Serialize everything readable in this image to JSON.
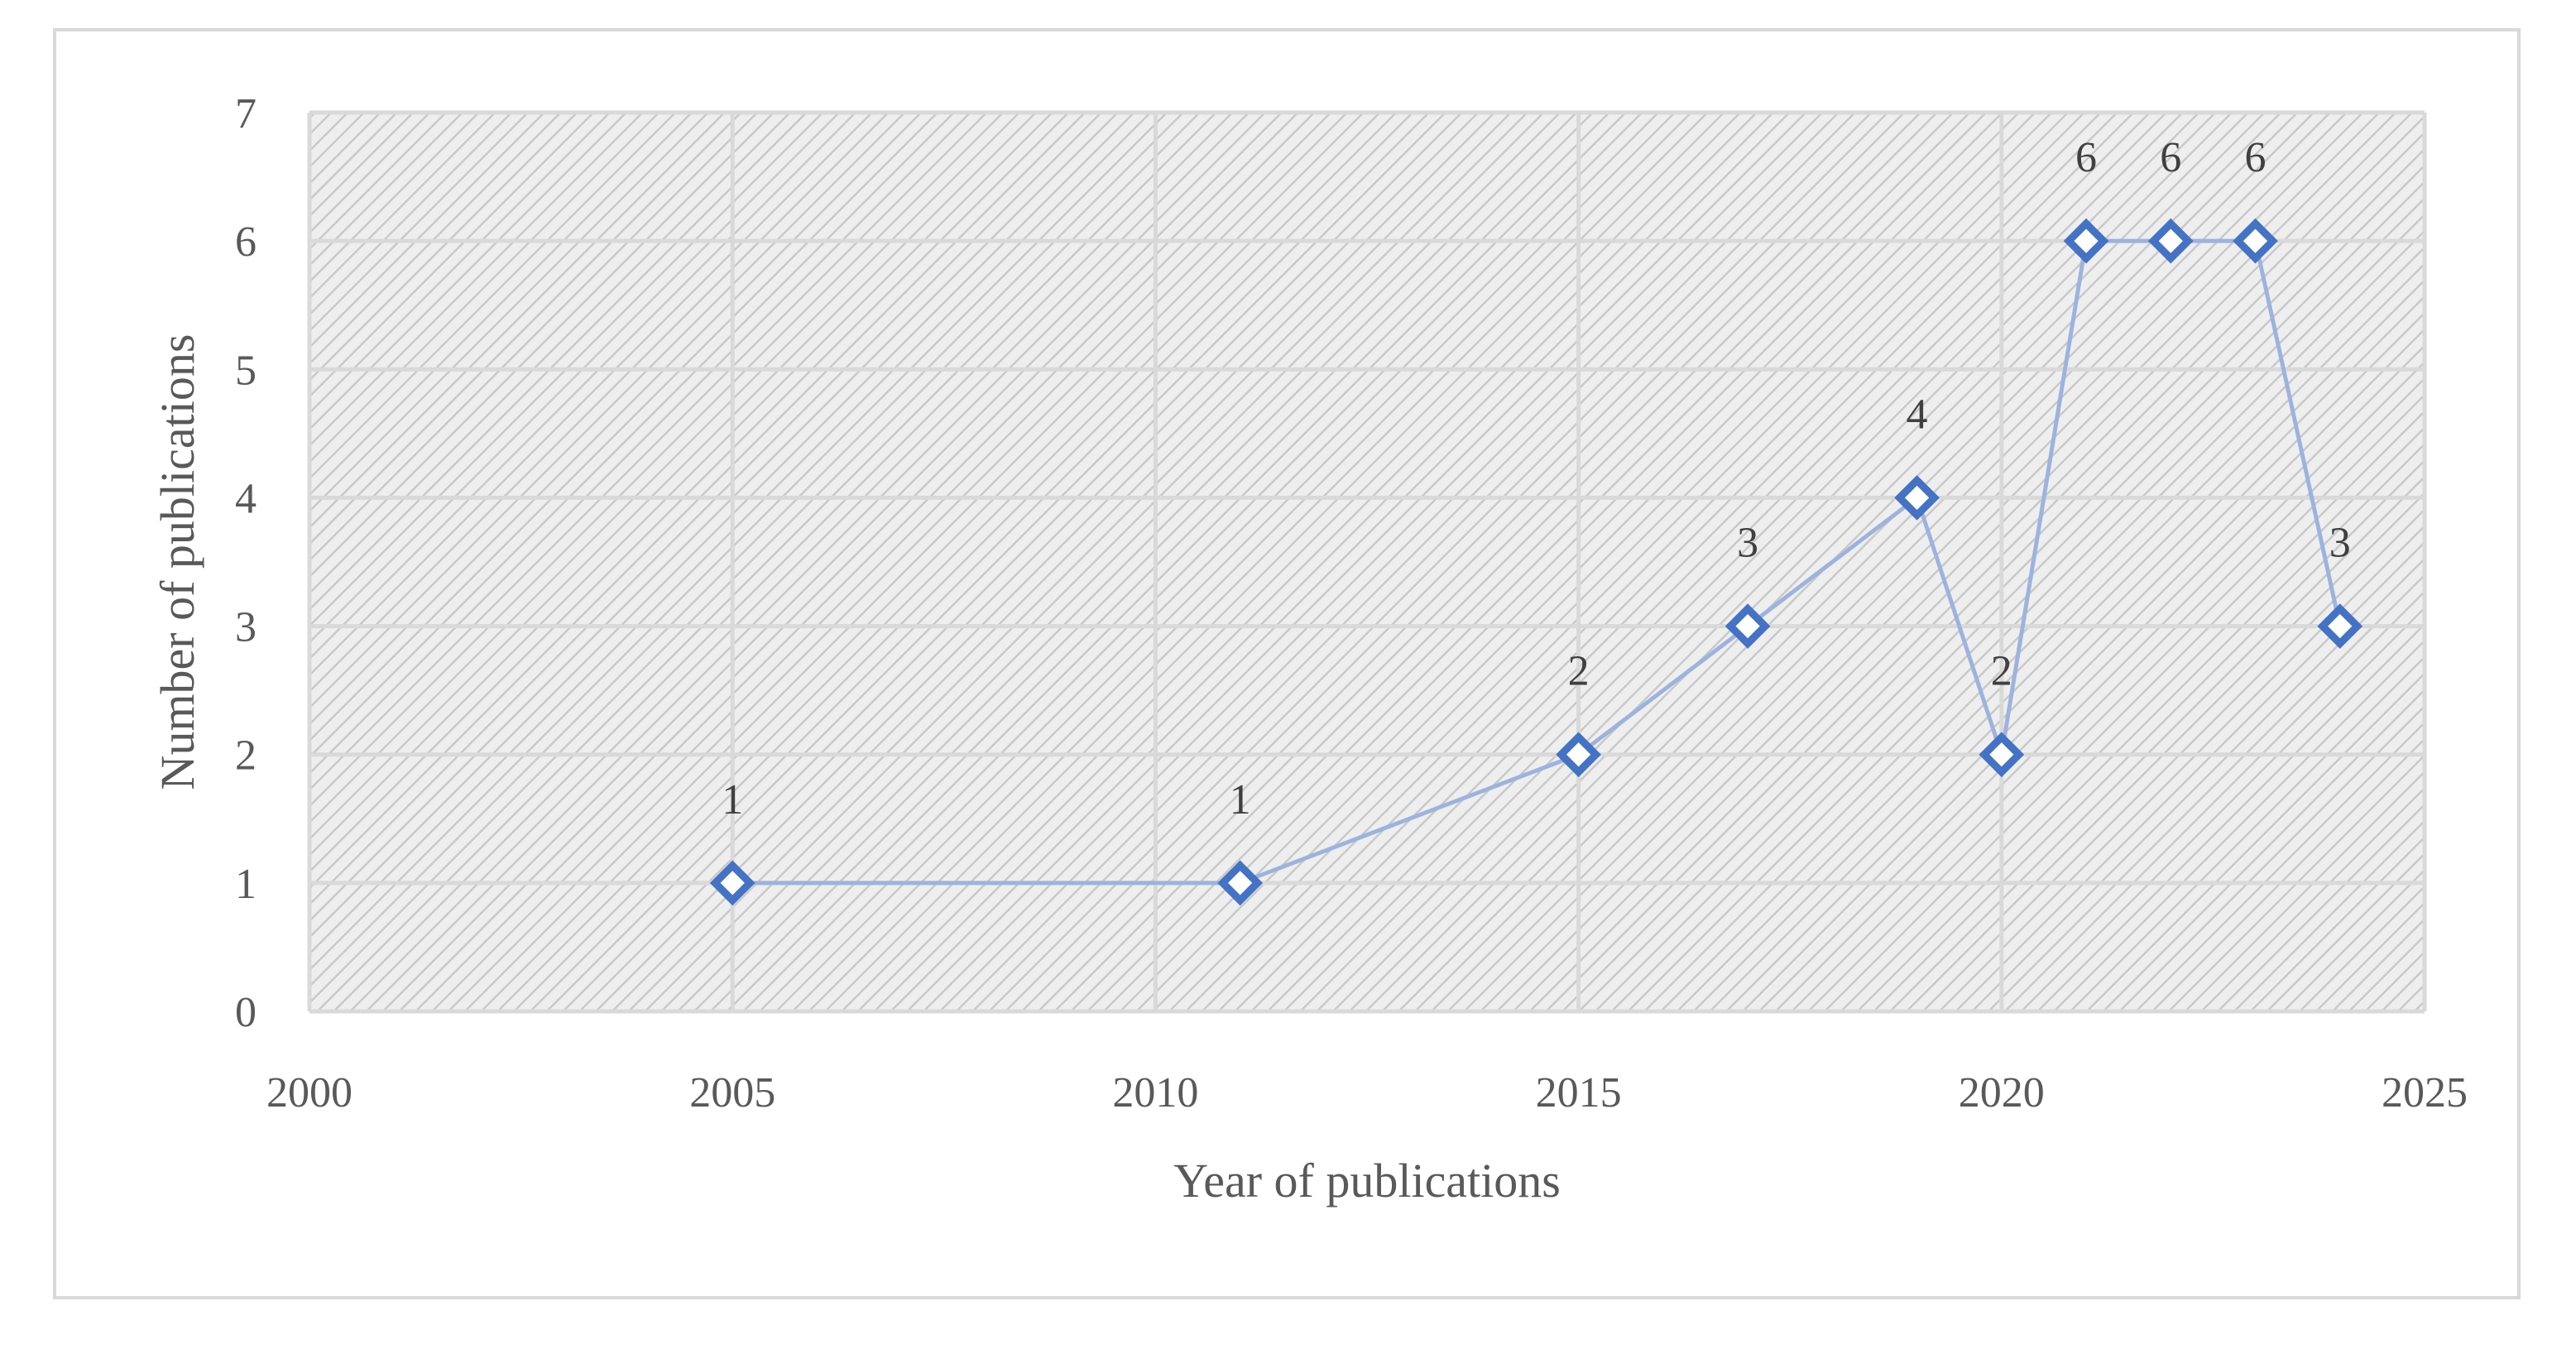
{
  "chart_data": {
    "type": "scatter",
    "mode": "lines+markers",
    "title": "",
    "xlabel": "Year of publications",
    "ylabel": "Number of publications",
    "xlim": [
      2000,
      2025
    ],
    "ylim": [
      0,
      7
    ],
    "x_ticks": [
      2000,
      2005,
      2010,
      2015,
      2020,
      2025
    ],
    "y_ticks": [
      0,
      1,
      2,
      3,
      4,
      5,
      6,
      7
    ],
    "grid": true,
    "legend": "none",
    "marker": "diamond-open",
    "line_color": "#9db3de",
    "marker_color": "#4472c4",
    "plot_background": "hatched-gray",
    "series": [
      {
        "x": [
          2005,
          2011,
          2015,
          2017,
          2019,
          2020,
          2021,
          2022,
          2023,
          2024
        ],
        "y": [
          1,
          1,
          2,
          3,
          4,
          2,
          6,
          6,
          6,
          3
        ],
        "labels": [
          "1",
          "1",
          "2",
          "3",
          "4",
          "2",
          "6",
          "6",
          "6",
          "3"
        ]
      }
    ]
  }
}
